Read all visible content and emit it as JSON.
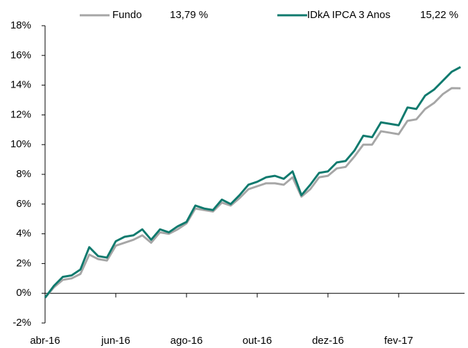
{
  "chart_data": {
    "type": "line",
    "categories": [
      "abr-16",
      null,
      null,
      null,
      null,
      null,
      null,
      null,
      "jun-16",
      null,
      null,
      null,
      null,
      null,
      null,
      null,
      "ago-16",
      null,
      null,
      null,
      null,
      null,
      null,
      null,
      "out-16",
      null,
      null,
      null,
      null,
      null,
      null,
      null,
      "dez-16",
      null,
      null,
      null,
      null,
      null,
      null,
      null,
      "fev-17",
      null,
      null,
      null,
      null,
      null,
      null,
      null
    ],
    "series": [
      {
        "name": "Fundo",
        "color": "#a6a6a6",
        "final_label": "13,79 %",
        "values": [
          -0.3,
          0.4,
          0.9,
          1.0,
          1.3,
          2.6,
          2.3,
          2.2,
          3.2,
          3.4,
          3.6,
          3.9,
          3.4,
          4.1,
          4.0,
          4.3,
          4.7,
          5.7,
          5.6,
          5.5,
          6.1,
          5.9,
          6.4,
          7.0,
          7.2,
          7.4,
          7.4,
          7.3,
          7.8,
          6.5,
          7.0,
          7.8,
          7.9,
          8.4,
          8.5,
          9.2,
          10.0,
          10.0,
          10.9,
          10.8,
          10.7,
          11.6,
          11.7,
          12.4,
          12.8,
          13.4,
          13.8,
          13.79
        ]
      },
      {
        "name": "IDkA IPCA 3 Anos",
        "color": "#0f7a6e",
        "final_label": "15,22 %",
        "values": [
          -0.3,
          0.5,
          1.1,
          1.2,
          1.6,
          3.1,
          2.5,
          2.4,
          3.5,
          3.8,
          3.9,
          4.3,
          3.6,
          4.3,
          4.1,
          4.5,
          4.8,
          5.9,
          5.7,
          5.6,
          6.3,
          6.0,
          6.6,
          7.3,
          7.5,
          7.8,
          7.9,
          7.7,
          8.2,
          6.6,
          7.3,
          8.1,
          8.2,
          8.8,
          8.9,
          9.6,
          10.6,
          10.5,
          11.5,
          11.4,
          11.3,
          12.5,
          12.4,
          13.3,
          13.7,
          14.3,
          14.9,
          15.22
        ]
      }
    ],
    "ylim": [
      -2,
      18
    ],
    "yticks": [
      {
        "value": -2,
        "label": "-2%"
      },
      {
        "value": 0,
        "label": "0%"
      },
      {
        "value": 2,
        "label": "2%"
      },
      {
        "value": 4,
        "label": "4%"
      },
      {
        "value": 6,
        "label": "6%"
      },
      {
        "value": 8,
        "label": "8%"
      },
      {
        "value": 10,
        "label": "10%"
      },
      {
        "value": 12,
        "label": "12%"
      },
      {
        "value": 14,
        "label": "14%"
      },
      {
        "value": 16,
        "label": "16%"
      },
      {
        "value": 18,
        "label": "18%"
      }
    ],
    "grid": false
  }
}
